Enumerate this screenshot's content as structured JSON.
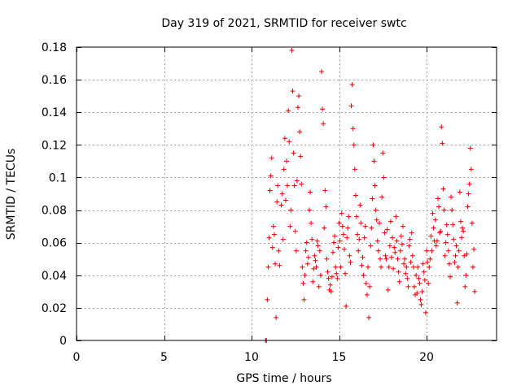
{
  "chart_data": {
    "type": "scatter",
    "title": "Day 319 of 2021, SRMTID for receiver swtc",
    "xlabel": "GPS time / hours",
    "ylabel": "SRMTID / TECUs",
    "xlim": [
      0,
      24
    ],
    "ylim": [
      0,
      0.18
    ],
    "xticks": [
      0,
      5,
      10,
      15,
      20
    ],
    "xtick_labels": [
      "0",
      "5",
      "10",
      "15",
      "20"
    ],
    "yticks": [
      0,
      0.02,
      0.04,
      0.06,
      0.08,
      0.1,
      0.12,
      0.14,
      0.16,
      0.18
    ],
    "ytick_labels": [
      "0",
      "0.02",
      "0.04",
      "0.06",
      "0.08",
      "0.1",
      "0.12",
      "0.14",
      "0.16",
      "0.18"
    ],
    "grid": true,
    "marker": "+",
    "colors": {
      "series": "#e00000",
      "grid": "#a0a0a0",
      "axis": "#000000"
    },
    "series": [
      {
        "name": "SRMTID",
        "points": [
          [
            10.8,
            0.0
          ],
          [
            10.85,
            0.0
          ],
          [
            10.9,
            0.025
          ],
          [
            10.95,
            0.045
          ],
          [
            11.0,
            0.063
          ],
          [
            11.05,
            0.092
          ],
          [
            11.1,
            0.101
          ],
          [
            11.15,
            0.112
          ],
          [
            11.2,
            0.057
          ],
          [
            11.25,
            0.07
          ],
          [
            11.3,
            0.065
          ],
          [
            11.35,
            0.047
          ],
          [
            11.4,
            0.014
          ],
          [
            11.45,
            0.085
          ],
          [
            11.5,
            0.095
          ],
          [
            11.55,
            0.055
          ],
          [
            11.6,
            0.046
          ],
          [
            11.7,
            0.083
          ],
          [
            11.75,
            0.09
          ],
          [
            11.8,
            0.062
          ],
          [
            11.85,
            0.105
          ],
          [
            11.9,
            0.124
          ],
          [
            11.95,
            0.086
          ],
          [
            12.0,
            0.11
          ],
          [
            12.05,
            0.095
          ],
          [
            12.1,
            0.141
          ],
          [
            12.15,
            0.122
          ],
          [
            12.2,
            0.07
          ],
          [
            12.25,
            0.08
          ],
          [
            12.3,
            0.178
          ],
          [
            12.35,
            0.153
          ],
          [
            12.4,
            0.115
          ],
          [
            12.45,
            0.095
          ],
          [
            12.5,
            0.067
          ],
          [
            12.55,
            0.055
          ],
          [
            12.6,
            0.098
          ],
          [
            12.65,
            0.143
          ],
          [
            12.7,
            0.15
          ],
          [
            12.75,
            0.128
          ],
          [
            12.8,
            0.113
          ],
          [
            12.85,
            0.096
          ],
          [
            12.9,
            0.045
          ],
          [
            12.95,
            0.035
          ],
          [
            13.0,
            0.025
          ],
          [
            13.05,
            0.04
          ],
          [
            13.1,
            0.055
          ],
          [
            13.15,
            0.06
          ],
          [
            13.2,
            0.047
          ],
          [
            13.25,
            0.051
          ],
          [
            13.3,
            0.08
          ],
          [
            13.35,
            0.091
          ],
          [
            13.4,
            0.072
          ],
          [
            13.45,
            0.062
          ],
          [
            13.5,
            0.036
          ],
          [
            13.55,
            0.044
          ],
          [
            13.6,
            0.052
          ],
          [
            13.65,
            0.049
          ],
          [
            13.7,
            0.045
          ],
          [
            13.75,
            0.061
          ],
          [
            13.8,
            0.058
          ],
          [
            13.85,
            0.033
          ],
          [
            13.9,
            0.055
          ],
          [
            13.95,
            0.04
          ],
          [
            14.0,
            0.165
          ],
          [
            14.05,
            0.142
          ],
          [
            14.1,
            0.133
          ],
          [
            14.15,
            0.069
          ],
          [
            14.2,
            0.092
          ],
          [
            14.25,
            0.082
          ],
          [
            14.3,
            0.05
          ],
          [
            14.35,
            0.042
          ],
          [
            14.4,
            0.038
          ],
          [
            14.45,
            0.031
          ],
          [
            14.5,
            0.034
          ],
          [
            14.55,
            0.03
          ],
          [
            14.6,
            0.039
          ],
          [
            14.65,
            0.054
          ],
          [
            14.7,
            0.06
          ],
          [
            14.75,
            0.064
          ],
          [
            14.8,
            0.045
          ],
          [
            14.85,
            0.041
          ],
          [
            14.9,
            0.038
          ],
          [
            14.95,
            0.057
          ],
          [
            15.0,
            0.072
          ],
          [
            15.05,
            0.061
          ],
          [
            15.1,
            0.045
          ],
          [
            15.15,
            0.078
          ],
          [
            15.2,
            0.07
          ],
          [
            15.25,
            0.065
          ],
          [
            15.3,
            0.056
          ],
          [
            15.35,
            0.041
          ],
          [
            15.4,
            0.021
          ],
          [
            15.45,
            0.063
          ],
          [
            15.5,
            0.069
          ],
          [
            15.55,
            0.076
          ],
          [
            15.6,
            0.052
          ],
          [
            15.65,
            0.048
          ],
          [
            15.7,
            0.144
          ],
          [
            15.75,
            0.157
          ],
          [
            15.8,
            0.13
          ],
          [
            15.85,
            0.12
          ],
          [
            15.9,
            0.105
          ],
          [
            15.95,
            0.089
          ],
          [
            16.0,
            0.076
          ],
          [
            16.05,
            0.065
          ],
          [
            16.1,
            0.055
          ],
          [
            16.15,
            0.062
          ],
          [
            16.2,
            0.083
          ],
          [
            16.25,
            0.072
          ],
          [
            16.3,
            0.046
          ],
          [
            16.35,
            0.051
          ],
          [
            16.4,
            0.04
          ],
          [
            16.45,
            0.063
          ],
          [
            16.5,
            0.07
          ],
          [
            16.55,
            0.035
          ],
          [
            16.6,
            0.028
          ],
          [
            16.65,
            0.045
          ],
          [
            16.7,
            0.014
          ],
          [
            16.75,
            0.033
          ],
          [
            16.8,
            0.058
          ],
          [
            16.85,
            0.069
          ],
          [
            16.9,
            0.087
          ],
          [
            16.95,
            0.12
          ],
          [
            17.0,
            0.11
          ],
          [
            17.05,
            0.095
          ],
          [
            17.1,
            0.08
          ],
          [
            17.15,
            0.074
          ],
          [
            17.2,
            0.061
          ],
          [
            17.25,
            0.055
          ],
          [
            17.3,
            0.072
          ],
          [
            17.35,
            0.05
          ],
          [
            17.4,
            0.045
          ],
          [
            17.45,
            0.088
          ],
          [
            17.5,
            0.115
          ],
          [
            17.55,
            0.1
          ],
          [
            17.6,
            0.066
          ],
          [
            17.65,
            0.052
          ],
          [
            17.7,
            0.05
          ],
          [
            17.75,
            0.068
          ],
          [
            17.8,
            0.031
          ],
          [
            17.85,
            0.045
          ],
          [
            17.9,
            0.058
          ],
          [
            17.95,
            0.073
          ],
          [
            18.0,
            0.051
          ],
          [
            18.05,
            0.063
          ],
          [
            18.1,
            0.044
          ],
          [
            18.15,
            0.057
          ],
          [
            18.2,
            0.054
          ],
          [
            18.25,
            0.076
          ],
          [
            18.3,
            0.061
          ],
          [
            18.35,
            0.05
          ],
          [
            18.4,
            0.042
          ],
          [
            18.45,
            0.036
          ],
          [
            18.5,
            0.055
          ],
          [
            18.55,
            0.064
          ],
          [
            18.6,
            0.059
          ],
          [
            18.65,
            0.07
          ],
          [
            18.7,
            0.047
          ],
          [
            18.75,
            0.05
          ],
          [
            18.8,
            0.041
          ],
          [
            18.85,
            0.045
          ],
          [
            18.9,
            0.038
          ],
          [
            18.95,
            0.033
          ],
          [
            19.0,
            0.058
          ],
          [
            19.05,
            0.062
          ],
          [
            19.1,
            0.048
          ],
          [
            19.15,
            0.066
          ],
          [
            19.2,
            0.052
          ],
          [
            19.25,
            0.045
          ],
          [
            19.3,
            0.033
          ],
          [
            19.35,
            0.028
          ],
          [
            19.4,
            0.04
          ],
          [
            19.45,
            0.029
          ],
          [
            19.5,
            0.045
          ],
          [
            19.55,
            0.038
          ],
          [
            19.6,
            0.035
          ],
          [
            19.65,
            0.025
          ],
          [
            19.7,
            0.022
          ],
          [
            19.75,
            0.03
          ],
          [
            19.8,
            0.047
          ],
          [
            19.85,
            0.042
          ],
          [
            19.9,
            0.037
          ],
          [
            19.95,
            0.017
          ],
          [
            20.0,
            0.055
          ],
          [
            20.05,
            0.048
          ],
          [
            20.1,
            0.035
          ],
          [
            20.15,
            0.045
          ],
          [
            20.2,
            0.05
          ],
          [
            20.25,
            0.064
          ],
          [
            20.3,
            0.055
          ],
          [
            20.35,
            0.078
          ],
          [
            20.4,
            0.069
          ],
          [
            20.45,
            0.061
          ],
          [
            20.5,
            0.074
          ],
          [
            20.55,
            0.058
          ],
          [
            20.6,
            0.061
          ],
          [
            20.65,
            0.087
          ],
          [
            20.7,
            0.082
          ],
          [
            20.75,
            0.066
          ],
          [
            20.8,
            0.067
          ],
          [
            20.85,
            0.131
          ],
          [
            20.9,
            0.121
          ],
          [
            20.95,
            0.093
          ],
          [
            21.0,
            0.08
          ],
          [
            21.05,
            0.052
          ],
          [
            21.1,
            0.06
          ],
          [
            21.15,
            0.071
          ],
          [
            21.2,
            0.065
          ],
          [
            21.25,
            0.055
          ],
          [
            21.3,
            0.047
          ],
          [
            21.35,
            0.039
          ],
          [
            21.4,
            0.088
          ],
          [
            21.45,
            0.08
          ],
          [
            21.5,
            0.071
          ],
          [
            21.55,
            0.062
          ],
          [
            21.6,
            0.048
          ],
          [
            21.65,
            0.052
          ],
          [
            21.7,
            0.058
          ],
          [
            21.75,
            0.023
          ],
          [
            21.8,
            0.045
          ],
          [
            21.85,
            0.055
          ],
          [
            21.9,
            0.091
          ],
          [
            21.95,
            0.073
          ],
          [
            22.0,
            0.063
          ],
          [
            22.05,
            0.069
          ],
          [
            22.1,
            0.067
          ],
          [
            22.15,
            0.052
          ],
          [
            22.2,
            0.033
          ],
          [
            22.25,
            0.04
          ],
          [
            22.3,
            0.053
          ],
          [
            22.35,
            0.082
          ],
          [
            22.4,
            0.09
          ],
          [
            22.45,
            0.096
          ],
          [
            22.5,
            0.118
          ],
          [
            22.55,
            0.105
          ],
          [
            22.6,
            0.072
          ],
          [
            22.65,
            0.045
          ],
          [
            22.7,
            0.056
          ],
          [
            22.75,
            0.03
          ]
        ]
      }
    ]
  }
}
